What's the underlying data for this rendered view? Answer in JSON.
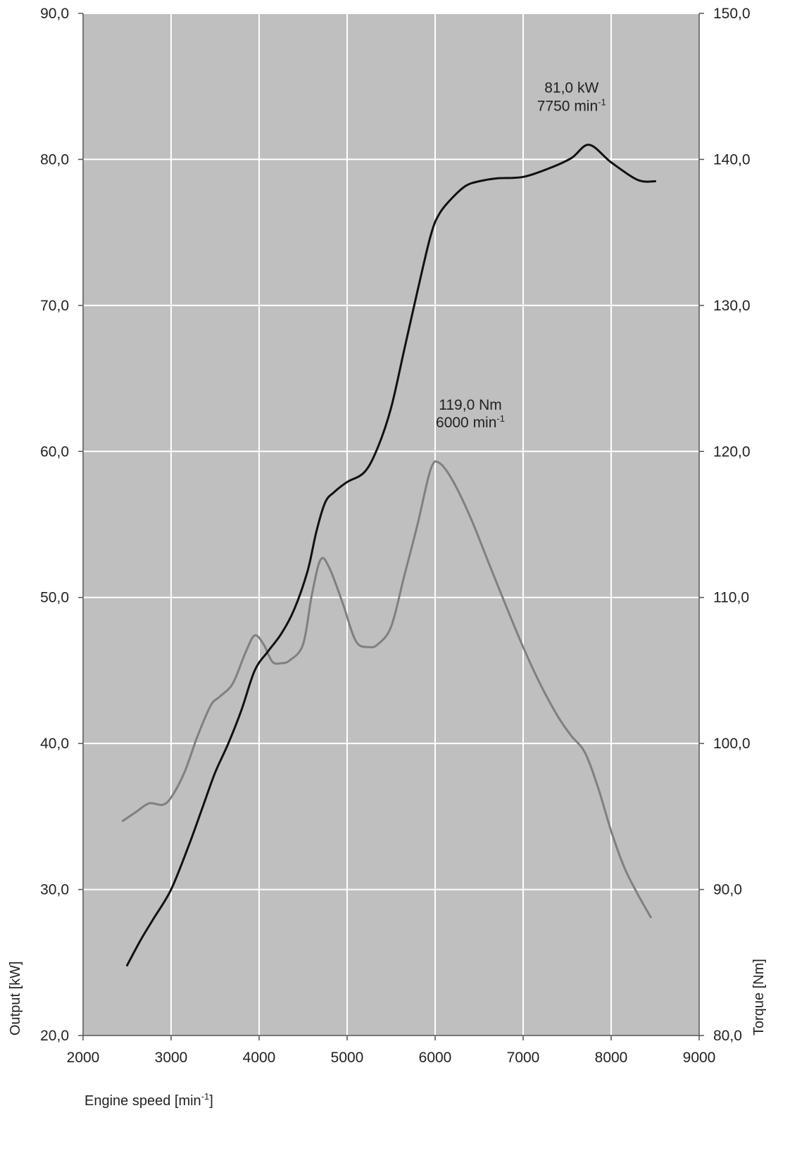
{
  "chart_data": {
    "type": "line",
    "title": "",
    "xlabel": "Engine speed [min",
    "xlabel_sup": "-1",
    "xlabel_suffix": "]",
    "ylabel": "Output [kW]",
    "y2label": "Torque [Nm]",
    "xlim": [
      2000,
      9000
    ],
    "ylim": [
      20,
      90
    ],
    "y2lim": [
      80,
      150
    ],
    "x_ticks": [
      "2000",
      "3000",
      "4000",
      "5000",
      "6000",
      "7000",
      "8000",
      "9000"
    ],
    "y_ticks": [
      "20,0",
      "30,0",
      "40,0",
      "50,0",
      "60,0",
      "70,0",
      "80,0",
      "90,0"
    ],
    "y2_ticks": [
      "80,0",
      "90,0",
      "100,0",
      "110,0",
      "120,0",
      "130,0",
      "140,0",
      "150,0"
    ],
    "grid": true,
    "plot_background": "#bfbfbf",
    "series": [
      {
        "axis": "left",
        "color": "#111111",
        "x": [
          2500,
          2650,
          2800,
          3000,
          3200,
          3350,
          3500,
          3650,
          3800,
          3950,
          4100,
          4250,
          4400,
          4550,
          4650,
          4750,
          4850,
          5000,
          5200,
          5350,
          5500,
          5650,
          5800,
          5950,
          6050,
          6200,
          6350,
          6500,
          6700,
          7000,
          7300,
          7550,
          7750,
          8000,
          8300,
          8500
        ],
        "y": [
          24.8,
          26.5,
          28.0,
          30.0,
          33.0,
          35.5,
          38.0,
          40.0,
          42.3,
          45.0,
          46.3,
          47.5,
          49.2,
          51.8,
          54.5,
          56.5,
          57.2,
          57.9,
          58.6,
          60.3,
          63.0,
          67.0,
          71.0,
          74.8,
          76.3,
          77.4,
          78.2,
          78.5,
          78.7,
          78.8,
          79.4,
          80.1,
          81.0,
          79.8,
          78.6,
          78.5
        ]
      },
      {
        "axis": "right",
        "color": "#808080",
        "x": [
          2450,
          2600,
          2750,
          2900,
          3000,
          3150,
          3300,
          3450,
          3550,
          3700,
          3850,
          3950,
          4050,
          4150,
          4250,
          4350,
          4500,
          4600,
          4700,
          4800,
          4950,
          5100,
          5250,
          5350,
          5500,
          5650,
          5800,
          5950,
          6050,
          6200,
          6400,
          6600,
          6800,
          7000,
          7200,
          7400,
          7550,
          7700,
          7850,
          8000,
          8150,
          8300,
          8450
        ],
        "y": [
          94.7,
          95.3,
          95.9,
          95.8,
          96.3,
          98.0,
          100.5,
          102.6,
          103.2,
          104.1,
          106.3,
          107.4,
          106.8,
          105.6,
          105.5,
          105.7,
          106.8,
          110.2,
          112.6,
          112.0,
          109.6,
          107.0,
          106.6,
          106.8,
          108.0,
          111.5,
          115.0,
          118.8,
          119.2,
          118.0,
          115.5,
          112.5,
          109.5,
          106.6,
          104.0,
          101.8,
          100.5,
          99.4,
          97.0,
          94.0,
          91.5,
          89.7,
          88.1
        ]
      }
    ],
    "annotations": [
      {
        "line1": "81,0 kW",
        "line2": "7750 min",
        "sup": "-1",
        "x": 7750,
        "y": 81.0,
        "axis": "left"
      },
      {
        "line1": "119,0 Nm",
        "line2": "6000 min",
        "sup": "-1",
        "x": 6000,
        "y": 119.0,
        "axis": "right"
      }
    ]
  }
}
